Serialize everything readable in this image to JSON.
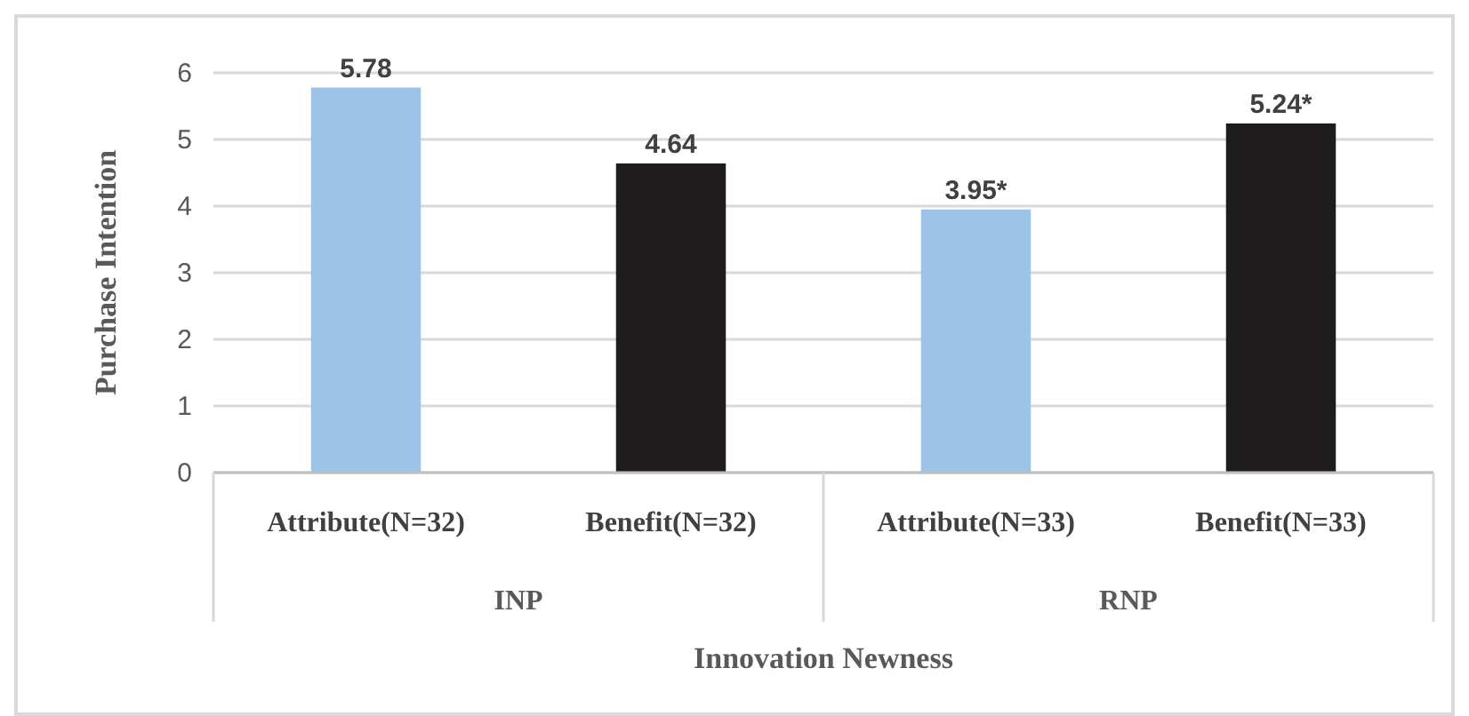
{
  "chart_data": {
    "type": "bar",
    "ylabel": "Purchase Intention",
    "xlabel": "Innovation Newness",
    "categories": [
      "Attribute(N=32)",
      "Benefit(N=32)",
      "Attribute(N=33)",
      "Benefit(N=33)"
    ],
    "values": [
      5.78,
      4.64,
      3.95,
      5.24
    ],
    "colors": [
      "#9dc3e6",
      "#1e1c1c",
      "#9dc3e6",
      "#1e1c1c"
    ],
    "value_labels": [
      "5.78",
      "4.64",
      "3.95*",
      "5.24*"
    ],
    "annotations": [
      "INP",
      "RNP"
    ],
    "ylim": [
      0,
      6
    ],
    "yticks": [
      0,
      1,
      2,
      3,
      4,
      5,
      6
    ],
    "grid": "y"
  }
}
